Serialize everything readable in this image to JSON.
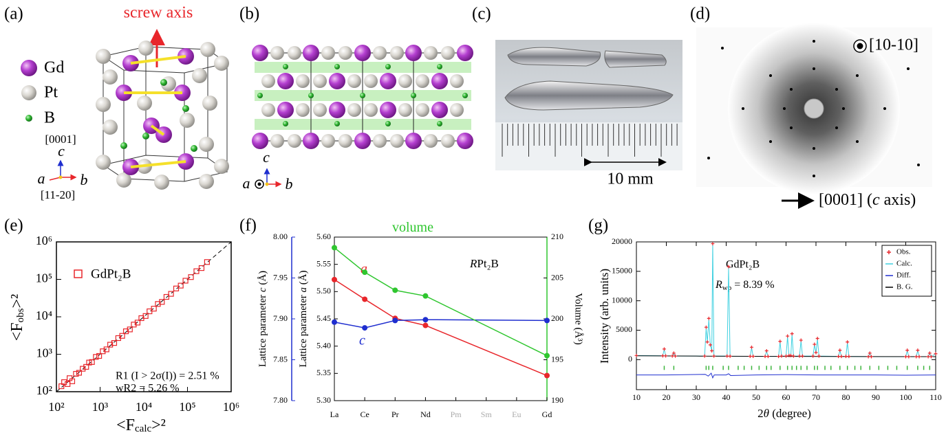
{
  "panel_labels": [
    "(a)",
    "(b)",
    "(c)",
    "(d)",
    "(e)",
    "(f)",
    "(g)"
  ],
  "structure_a": {
    "annotation": "screw axis",
    "legend": [
      "Gd",
      "Pt",
      "B"
    ],
    "direction_c": "[0001]",
    "axis_c": "c",
    "axis_a": "a",
    "axis_b": "b",
    "direction_a": "[11-20]"
  },
  "structure_b": {
    "axis_c": "c",
    "axis_a": "a",
    "axis_b": "b"
  },
  "photo_c": {
    "scale_bar": "10 mm"
  },
  "laue_d": {
    "beam_direction": "[10-10]",
    "horizontal_direction": [
      "[0001] (",
      "c",
      " axis)"
    ]
  },
  "chart_data": [
    {
      "type": "scatter",
      "x_label": [
        "<F",
        "calc",
        ">²"
      ],
      "y_label": [
        "<F",
        "obs",
        ">²"
      ],
      "log_x": true,
      "log_y": true,
      "xlim": [
        100,
        1000000
      ],
      "ylim": [
        100,
        1000000
      ],
      "xticks": [
        {
          "value": 100,
          "label": "10²"
        },
        {
          "value": 1000,
          "label": "10³"
        },
        {
          "value": 10000,
          "label": "10⁴"
        },
        {
          "value": 100000,
          "label": "10⁵"
        },
        {
          "value": 1000000,
          "label": "10⁶"
        }
      ],
      "yticks": [
        {
          "value": 100,
          "label": "10²"
        },
        {
          "value": 1000,
          "label": "10³"
        },
        {
          "value": 10000,
          "label": "10⁴"
        },
        {
          "value": 100000,
          "label": "10⁵"
        },
        {
          "value": 1000000,
          "label": "10⁶"
        }
      ],
      "series": [
        {
          "name": "GdPt₂B",
          "color": "#e8262b",
          "x": [
            130,
            150,
            180,
            200,
            230,
            280,
            330,
            400,
            480,
            560,
            650,
            800,
            950,
            1150,
            1400,
            1700,
            2100,
            2600,
            3200,
            3900,
            4800,
            5900,
            7200,
            8800,
            11000,
            13500,
            17000,
            21000,
            26000,
            33000,
            42000,
            55000,
            70000,
            90000,
            120000,
            160000,
            210000,
            280000
          ],
          "values": [
            140,
            180,
            160,
            230,
            190,
            300,
            320,
            410,
            460,
            600,
            620,
            850,
            900,
            1200,
            1350,
            1800,
            2000,
            2700,
            3100,
            4100,
            4600,
            6200,
            7000,
            9200,
            10500,
            14000,
            16500,
            22000,
            25000,
            34000,
            41000,
            57000,
            68000,
            92000,
            115000,
            165000,
            200000,
            290000
          ]
        }
      ],
      "annotations": [
        "R1 (I > 2σ(I)) = 2.51 %",
        "wR2          = 5.26 %"
      ]
    },
    {
      "type": "line",
      "categories": [
        "La",
        "Ce",
        "Pr",
        "Nd",
        "Pm",
        "Sm",
        "Eu",
        "Gd"
      ],
      "category_colors": [
        "#000000",
        "#000000",
        "#000000",
        "#000000",
        "#aaaaaa",
        "#aaaaaa",
        "#aaaaaa",
        "#000000"
      ],
      "y_label": [
        "Lattice parameter ",
        "a",
        " (Å)"
      ],
      "y2_label": "Volume (Å³)",
      "y3_label": [
        "Lattice parameter ",
        "c",
        " (Å)"
      ],
      "annotation": [
        "R",
        "Pt₂B"
      ],
      "ylim": [
        5.3,
        5.6
      ],
      "yticks": [
        {
          "value": 5.3,
          "label": "5.30"
        },
        {
          "value": 5.35,
          "label": "5.35"
        },
        {
          "value": 5.4,
          "label": "5.40"
        },
        {
          "value": 5.45,
          "label": "5.45"
        },
        {
          "value": 5.5,
          "label": "5.50"
        },
        {
          "value": 5.55,
          "label": "5.55"
        },
        {
          "value": 5.6,
          "label": "5.60"
        }
      ],
      "y2lim": [
        190,
        210
      ],
      "y2ticks": [
        190,
        195,
        200,
        205,
        210
      ],
      "y3lim": [
        7.8,
        8.0
      ],
      "y3ticks": [
        {
          "value": 7.8,
          "label": "7.80"
        },
        {
          "value": 7.85,
          "label": "7.85"
        },
        {
          "value": 7.9,
          "label": "7.90"
        },
        {
          "value": 7.95,
          "label": "7.95"
        },
        {
          "value": 8.0,
          "label": "8.00"
        }
      ],
      "series": [
        {
          "name": "a",
          "color": "#e8262b",
          "x": [
            "La",
            "Ce",
            "Pr",
            "Nd",
            "Gd"
          ],
          "values": [
            5.522,
            5.486,
            5.451,
            5.438,
            5.346
          ]
        },
        {
          "name": "c",
          "color": "#1f2ecf",
          "axis": "y3",
          "x": [
            "La",
            "Ce",
            "Pr",
            "Nd",
            "Gd"
          ],
          "values": [
            7.896,
            7.889,
            7.898,
            7.899,
            7.898
          ]
        },
        {
          "name": "volume",
          "color": "#2fc62f",
          "axis": "y2",
          "x": [
            "La",
            "Ce",
            "Pr",
            "Nd",
            "Gd"
          ],
          "values": [
            208.7,
            205.7,
            203.5,
            202.8,
            195.5
          ]
        }
      ]
    },
    {
      "type": "line",
      "title": "GdPt₂B",
      "annotation": [
        "R",
        "wp",
        " = 8.39 %"
      ],
      "x_label": [
        "2",
        "θ",
        " (degree)"
      ],
      "y_label": "Intensity (arb. units)",
      "xlim": [
        10,
        110
      ],
      "xticks": [
        10,
        20,
        30,
        40,
        50,
        60,
        70,
        80,
        90,
        100,
        110
      ],
      "ylim": [
        -5100,
        20000
      ],
      "yticks": [
        0,
        5000,
        10000,
        15000,
        20000
      ],
      "series": [
        {
          "name": "Obs.",
          "color": "#e8262b",
          "marker": "+",
          "x": [
            10,
            18.8,
            19.3,
            19.8,
            22,
            22.5,
            23,
            32.8,
            33.3,
            33.7,
            34.2,
            34.7,
            35.2,
            35.5,
            35.9,
            40.3,
            40.8,
            41.3,
            48,
            48.5,
            49,
            53,
            53.5,
            54,
            57.5,
            58,
            58.5,
            60,
            60.5,
            61,
            61.6,
            62,
            62.5,
            64.5,
            65,
            65.5,
            69,
            69.5,
            70,
            70.5,
            71,
            77.5,
            78,
            78.5,
            80,
            80.5,
            81,
            87.5,
            88,
            88.5,
            100,
            100.5,
            101,
            103.5,
            104,
            104.5,
            107.5,
            108,
            108.5,
            110
          ],
          "values": [
            700,
            650,
            1800,
            640,
            620,
            1100,
            610,
            600,
            5500,
            3000,
            7000,
            2500,
            1500,
            19700,
            600,
            600,
            15800,
            580,
            560,
            2100,
            560,
            550,
            1500,
            550,
            550,
            3100,
            600,
            600,
            4000,
            700,
            700,
            4400,
            600,
            600,
            3300,
            600,
            600,
            2600,
            1200,
            3600,
            600,
            550,
            1600,
            550,
            550,
            3000,
            550,
            500,
            1100,
            500,
            500,
            1600,
            500,
            500,
            1600,
            500,
            500,
            1100,
            500,
            1000
          ]
        },
        {
          "name": "Calc.",
          "color": "#3fd0e0",
          "x": [
            10,
            18.8,
            19.3,
            19.8,
            22,
            22.5,
            23,
            32.8,
            33.3,
            33.7,
            34.2,
            34.7,
            35.2,
            35.5,
            35.9,
            40.3,
            40.8,
            41.3,
            48,
            48.5,
            49,
            53,
            53.5,
            54,
            57.5,
            58,
            58.5,
            60,
            60.5,
            61,
            61.6,
            62,
            62.5,
            64.5,
            65,
            65.5,
            69,
            69.5,
            70,
            70.5,
            71,
            77.5,
            78,
            78.5,
            80,
            80.5,
            81,
            87.5,
            88,
            88.5,
            100,
            100.5,
            101,
            103.5,
            104,
            104.5,
            107.5,
            108,
            108.5,
            110
          ],
          "values": [
            700,
            650,
            1750,
            640,
            620,
            1050,
            610,
            600,
            5300,
            3000,
            6800,
            2500,
            1500,
            19900,
            600,
            600,
            15500,
            580,
            560,
            2000,
            560,
            550,
            1450,
            550,
            550,
            3000,
            600,
            600,
            3900,
            700,
            700,
            4300,
            600,
            600,
            3200,
            600,
            600,
            2500,
            1200,
            3500,
            600,
            550,
            1550,
            550,
            550,
            2900,
            550,
            500,
            1050,
            500,
            500,
            1550,
            500,
            500,
            1550,
            500,
            500,
            1050,
            500,
            1000
          ]
        },
        {
          "name": "Diff.",
          "color": "#1f2ecf",
          "x": [
            10,
            20,
            33,
            34,
            35,
            35.5,
            36,
            40,
            40.8,
            41.5,
            50,
            60,
            70,
            80,
            90,
            100,
            110
          ],
          "values": [
            -2600,
            -2600,
            -2500,
            -2800,
            -2300,
            -3100,
            -2600,
            -2600,
            -2400,
            -2700,
            -2600,
            -2550,
            -2600,
            -2600,
            -2600,
            -2650,
            -2600
          ]
        },
        {
          "name": "B. G.",
          "color": "#000000",
          "x": [
            10,
            30,
            60,
            110
          ],
          "values": [
            650,
            600,
            550,
            500
          ]
        }
      ],
      "reflections": {
        "color": "#3cb43c",
        "x": [
          19.3,
          22.5,
          33.3,
          34.2,
          35.5,
          39,
          40.8,
          44,
          46,
          48.5,
          51,
          53.5,
          55,
          58,
          60.5,
          62,
          63.5,
          65,
          67,
          69.5,
          70.5,
          73,
          75,
          78,
          80.5,
          83,
          85,
          88,
          91,
          94,
          97,
          100.5,
          104,
          106,
          108
        ]
      }
    }
  ]
}
